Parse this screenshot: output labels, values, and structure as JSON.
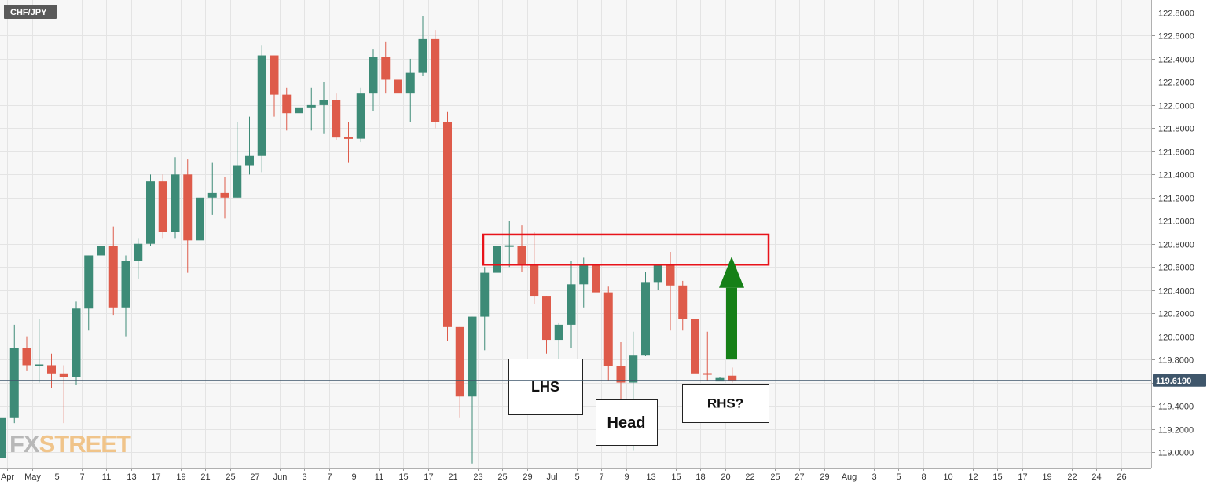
{
  "symbol": "CHF/JPY",
  "watermark": {
    "part1": "FX",
    "part2": "STREET"
  },
  "last_price_label": "119.6190",
  "colors": {
    "up": "#3d8b77",
    "down": "#de5b4a",
    "resistance": "#e8131a",
    "arrow": "#168017",
    "last_line": "#3f566b"
  },
  "annotations": {
    "lhs": "LHS",
    "head": "Head",
    "rhs": "RHS?"
  },
  "chart_data": {
    "type": "candlestick",
    "title": "CHF/JPY",
    "x_tick_labels": [
      "Apr",
      "May",
      "5",
      "7",
      "11",
      "13",
      "17",
      "19",
      "21",
      "25",
      "27",
      "Jun",
      "3",
      "7",
      "9",
      "11",
      "15",
      "17",
      "21",
      "23",
      "25",
      "29",
      "Jul",
      "5",
      "7",
      "9",
      "13",
      "15",
      "18",
      "20",
      "22",
      "25",
      "27",
      "29",
      "Aug",
      "3",
      "5",
      "8",
      "10",
      "12",
      "15",
      "17",
      "19",
      "22",
      "24",
      "26"
    ],
    "y_tick_labels": [
      "122.8000",
      "122.6000",
      "122.4000",
      "122.2000",
      "122.0000",
      "121.8000",
      "121.6000",
      "121.4000",
      "121.2000",
      "121.0000",
      "120.8000",
      "120.6000",
      "120.4000",
      "120.2000",
      "120.0000",
      "119.8000",
      "119.6000",
      "119.4000",
      "119.2000",
      "119.0000"
    ],
    "ylim": [
      118.88,
      122.84
    ],
    "last_price": 119.619,
    "candles": [
      [
        118.95,
        119.3,
        118.9,
        119.35
      ],
      [
        119.3,
        119.9,
        119.25,
        120.1
      ],
      [
        119.9,
        119.75,
        119.7,
        120.0
      ],
      [
        119.75,
        119.75,
        119.6,
        120.15
      ],
      [
        119.75,
        119.68,
        119.55,
        119.85
      ],
      [
        119.68,
        119.65,
        119.25,
        119.75
      ],
      [
        119.65,
        120.24,
        119.58,
        120.3
      ],
      [
        120.24,
        120.7,
        120.05,
        120.7
      ],
      [
        120.7,
        120.78,
        120.4,
        121.08
      ],
      [
        120.78,
        120.25,
        120.18,
        120.95
      ],
      [
        120.25,
        120.65,
        120.0,
        120.7
      ],
      [
        120.65,
        120.8,
        120.5,
        120.85
      ],
      [
        120.8,
        121.34,
        120.78,
        121.4
      ],
      [
        121.34,
        120.9,
        120.85,
        121.4
      ],
      [
        120.9,
        121.4,
        120.85,
        121.55
      ],
      [
        121.4,
        120.83,
        120.55,
        121.53
      ],
      [
        120.83,
        121.2,
        120.68,
        121.22
      ],
      [
        121.2,
        121.24,
        121.05,
        121.5
      ],
      [
        121.24,
        121.2,
        121.02,
        121.38
      ],
      [
        121.2,
        121.48,
        121.2,
        121.85
      ],
      [
        121.48,
        121.56,
        121.4,
        121.9
      ],
      [
        121.56,
        122.43,
        121.42,
        122.52
      ],
      [
        122.43,
        122.09,
        121.9,
        122.43
      ],
      [
        122.09,
        121.93,
        121.78,
        122.15
      ],
      [
        121.93,
        121.98,
        121.7,
        122.25
      ],
      [
        121.98,
        122.0,
        121.78,
        122.15
      ],
      [
        122.0,
        122.04,
        121.75,
        122.2
      ],
      [
        122.04,
        121.72,
        121.7,
        122.1
      ],
      [
        121.72,
        121.71,
        121.5,
        121.85
      ],
      [
        121.71,
        122.1,
        121.68,
        122.15
      ],
      [
        122.1,
        122.42,
        121.95,
        122.48
      ],
      [
        122.42,
        122.22,
        122.1,
        122.55
      ],
      [
        122.22,
        122.1,
        121.88,
        122.3
      ],
      [
        122.1,
        122.28,
        121.85,
        122.4
      ],
      [
        122.28,
        122.57,
        122.25,
        122.77
      ],
      [
        122.57,
        121.85,
        121.8,
        122.65
      ],
      [
        121.85,
        120.08,
        119.96,
        121.94
      ],
      [
        120.08,
        119.48,
        119.3,
        120.08
      ],
      [
        119.48,
        120.17,
        118.9,
        120.17
      ],
      [
        120.17,
        120.55,
        119.88,
        120.6
      ],
      [
        120.55,
        120.78,
        120.5,
        121.0
      ],
      [
        120.78,
        120.78,
        120.6,
        121.0
      ],
      [
        120.78,
        120.62,
        120.56,
        120.96
      ],
      [
        120.62,
        120.35,
        120.28,
        120.9
      ],
      [
        120.35,
        119.97,
        119.85,
        120.35
      ],
      [
        119.97,
        120.1,
        119.7,
        120.12
      ],
      [
        120.1,
        120.45,
        119.9,
        120.65
      ],
      [
        120.45,
        120.62,
        120.25,
        120.68
      ],
      [
        120.62,
        120.38,
        120.3,
        120.65
      ],
      [
        120.38,
        119.74,
        119.62,
        120.43
      ],
      [
        119.74,
        119.6,
        119.38,
        119.95
      ],
      [
        119.6,
        119.84,
        119.01,
        120.04
      ],
      [
        119.84,
        120.47,
        119.83,
        120.56
      ],
      [
        120.47,
        120.62,
        120.4,
        120.62
      ],
      [
        120.62,
        120.44,
        120.05,
        120.73
      ],
      [
        120.44,
        120.15,
        120.05,
        120.48
      ],
      [
        120.15,
        119.68,
        119.59,
        120.15
      ],
      [
        119.68,
        119.67,
        119.62,
        120.04
      ],
      [
        119.61,
        119.64,
        119.62,
        119.65
      ],
      [
        119.66,
        119.62,
        119.6,
        119.73
      ]
    ]
  }
}
